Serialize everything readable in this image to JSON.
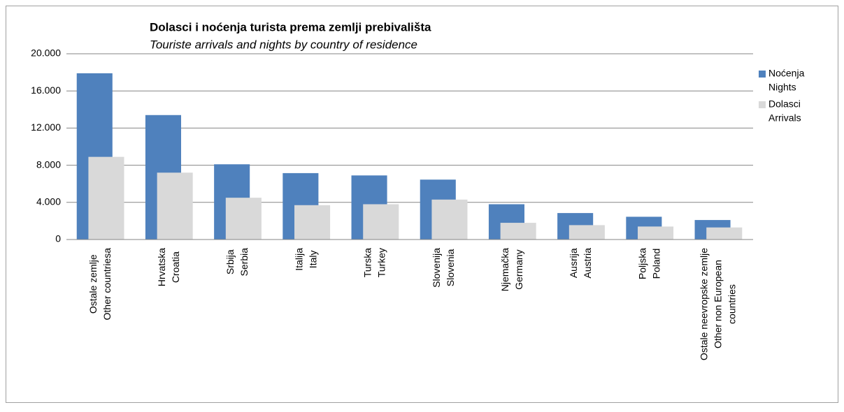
{
  "chart_data": {
    "type": "bar",
    "title": "Dolasci i noćenja turista prema zemlji prebivališta",
    "subtitle": "Touriste arrivals and nights by country of residence",
    "categories": [
      [
        "Ostale zemlje",
        "Other  countriesa"
      ],
      [
        "Hrvatska",
        "Croatia"
      ],
      [
        "Srbija",
        "Serbia"
      ],
      [
        "Italija",
        "Italy"
      ],
      [
        "Turska",
        "Turkey"
      ],
      [
        "Slovenija",
        "Slovenia"
      ],
      [
        "Njemačka",
        "Germany"
      ],
      [
        "Ausrija",
        "Austria"
      ],
      [
        "Poljska",
        "Poland"
      ],
      [
        "Ostale neevropske zemlje",
        "Other  non European",
        "countries"
      ]
    ],
    "series": [
      {
        "name": [
          "Noćenja",
          "Nights"
        ],
        "color": "#4f81bd",
        "values": [
          17900,
          13400,
          8100,
          7150,
          6900,
          6450,
          3800,
          2850,
          2450,
          2100
        ]
      },
      {
        "name": [
          "Dolasci",
          "Arrivals"
        ],
        "color": "#d9d9d9",
        "values": [
          8900,
          7200,
          4500,
          3700,
          3800,
          4300,
          1800,
          1550,
          1400,
          1300
        ]
      }
    ],
    "ylim": [
      0,
      20000
    ],
    "yticks": [
      0,
      {
        "value": 4000,
        "label": "4.000"
      },
      {
        "value": 8000,
        "label": "8.000"
      },
      {
        "value": 12000,
        "label": "12.000"
      },
      {
        "value": 16000,
        "label": "16.000"
      },
      {
        "value": 20000,
        "label": "20.000"
      }
    ],
    "grid": true,
    "legend": "right"
  }
}
